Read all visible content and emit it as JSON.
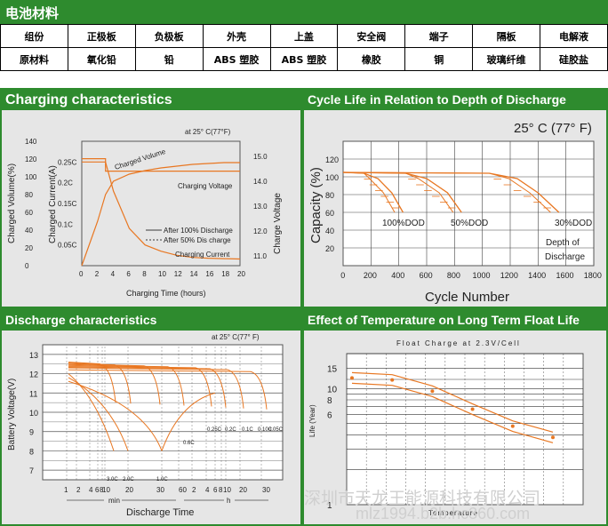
{
  "header": {
    "title": "电池材料"
  },
  "materials": {
    "row1": [
      "组份",
      "正极板",
      "负极板",
      "外壳",
      "上盖",
      "安全阀",
      "端子",
      "隔板",
      "电解液"
    ],
    "row2": [
      "原材料",
      "氧化铅",
      "铅",
      "ABS 塑胶",
      "ABS 塑胶",
      "橡胶",
      "铜",
      "玻璃纤维",
      "硅胶盐"
    ]
  },
  "charging": {
    "title": "Charging characteristics",
    "temp": "at 25° C(77°F)",
    "y1label": "Charged Volume(%)",
    "y2label": "Charged Current(A)",
    "y3label": "Charge Voltage",
    "xlabel": "Charging Time (hours)",
    "x_ticks": [
      "0",
      "2",
      "4",
      "6",
      "8",
      "10",
      "12",
      "14",
      "16",
      "18",
      "20"
    ],
    "vol_ticks": [
      "140",
      "120",
      "100",
      "80",
      "60",
      "40",
      "20",
      "0"
    ],
    "cur_ticks": [
      "0.25C",
      "0.2C",
      "0.15C",
      "0.1C",
      "0.05C"
    ],
    "volt_ticks": [
      "15.0",
      "14.0",
      "13.0",
      "12.0",
      "11.0"
    ],
    "curve_labels": {
      "vol": "Charged Volume",
      "volt": "Charging Voltage",
      "cur": "Charging Current",
      "leg1": "After 100% Discharge",
      "leg2": "After 50% Dis charge"
    }
  },
  "cycle": {
    "title": "Cycle Life in Relation to Depth of Discharge",
    "temp": "25° C (77° F)",
    "ylabel": "Capacity (%)",
    "xlabel": "Cycle Number",
    "x_ticks": [
      "0",
      "200",
      "400",
      "600",
      "800",
      "1000",
      "1200",
      "1400",
      "1600",
      "1800"
    ],
    "y_ticks": [
      "120",
      "100",
      "80",
      "60",
      "40",
      "20"
    ],
    "dod_labels": [
      "100%DOD",
      "50%DOD",
      "30%DOD"
    ],
    "dod_note_1": "Depth of",
    "dod_note_2": "Discharge"
  },
  "discharge": {
    "title": "Discharge characteristics",
    "temp": "at 25° C(77° F)",
    "ylabel": "Battery Voltage(V)",
    "xlabel": "Discharge Time",
    "y_ticks": [
      "13",
      "12",
      "11",
      "10",
      "9",
      "8",
      "7"
    ],
    "x_ticks": [
      "1",
      "2",
      "4",
      "6",
      "8",
      "10",
      "20",
      "30",
      "60",
      "2",
      "4",
      "6",
      "8",
      "10",
      "20",
      "30"
    ],
    "unit_min": "min",
    "unit_h": "h",
    "rate_labels": [
      "3.0C",
      "2.0C",
      "1.0C",
      "0.6C",
      "0.25C",
      "0.2C",
      "0.1C",
      "0.10C",
      "0.05C"
    ]
  },
  "float": {
    "title": "Effect of Temperature on Long Term Float Life",
    "subtitle": "Float Charge at 2.3V/Cell",
    "ylabel": "Life (Year)",
    "xlabel": "Temperature",
    "y_ticks": [
      "15",
      "10",
      "8",
      "6",
      "1"
    ]
  },
  "watermark": {
    "line1": "深圳市天龙王能源科技有限公司",
    "line2": "mlz1994.b2b.hc360.com"
  },
  "chart_data": [
    {
      "type": "line",
      "title": "Charging characteristics",
      "xlabel": "Charging Time (hours)",
      "xlim": [
        0,
        20
      ],
      "series": [
        {
          "name": "Charged Volume",
          "x": [
            0,
            1,
            2,
            3,
            4,
            6,
            8,
            10,
            12,
            14,
            16,
            18,
            20
          ],
          "values": [
            0,
            25,
            50,
            80,
            95,
            103,
            107,
            110,
            112,
            114,
            115,
            116,
            116
          ]
        },
        {
          "name": "Charging Voltage",
          "x": [
            0,
            3,
            3,
            20
          ],
          "values": [
            14.9,
            14.9,
            14.4,
            14.4
          ]
        },
        {
          "name": "Charging Current",
          "x": [
            0,
            3,
            4,
            6,
            8,
            10,
            12,
            14,
            16,
            18,
            20
          ],
          "values": [
            0.25,
            0.25,
            0.18,
            0.09,
            0.05,
            0.035,
            0.025,
            0.02,
            0.018,
            0.017,
            0.016
          ]
        }
      ],
      "y1lim": [
        0,
        140
      ]
    },
    {
      "type": "line",
      "title": "Cycle Life in Relation to Depth of Discharge",
      "xlabel": "Cycle Number",
      "ylabel": "Capacity (%)",
      "xlim": [
        0,
        1800
      ],
      "ylim": [
        0,
        120
      ],
      "series": [
        {
          "name": "100%DOD",
          "x": [
            0,
            150,
            250,
            350,
            430
          ],
          "values": [
            105,
            104,
            98,
            82,
            60
          ]
        },
        {
          "name": "50%DOD",
          "x": [
            0,
            450,
            600,
            750,
            850
          ],
          "values": [
            105,
            104,
            98,
            82,
            60
          ]
        },
        {
          "name": "30%DOD",
          "x": [
            0,
            1050,
            1250,
            1400,
            1550
          ],
          "values": [
            105,
            104,
            98,
            82,
            60
          ]
        }
      ]
    },
    {
      "type": "line",
      "title": "Discharge characteristics",
      "xlabel": "Discharge Time",
      "ylabel": "Battery Voltage(V)",
      "ylim": [
        7,
        13.5
      ],
      "series": [
        {
          "name": "3.0C",
          "values": [
            11.8,
            10.9,
            9.8,
            8.0
          ]
        },
        {
          "name": "2.0C",
          "values": [
            12.0,
            11.2,
            10.2,
            8.0
          ]
        },
        {
          "name": "1.0C",
          "values": [
            12.2,
            11.5,
            10.5,
            8.0
          ]
        },
        {
          "name": "0.6C",
          "values": [
            12.3,
            11.8,
            11.0,
            10.0
          ]
        },
        {
          "name": "0.25C",
          "values": [
            12.5,
            12.2,
            11.5,
            10.5
          ]
        },
        {
          "name": "0.05C",
          "values": [
            12.6,
            12.4,
            11.9,
            10.5
          ]
        }
      ]
    },
    {
      "type": "line",
      "title": "Effect of Temperature on Long Term Float Life",
      "ylabel": "Life (Year)",
      "xlabel": "Temperature",
      "yscale": "log",
      "series": [
        {
          "name": "Float life",
          "values": [
            13,
            12.5,
            10,
            7,
            5,
            4
          ]
        }
      ]
    }
  ]
}
